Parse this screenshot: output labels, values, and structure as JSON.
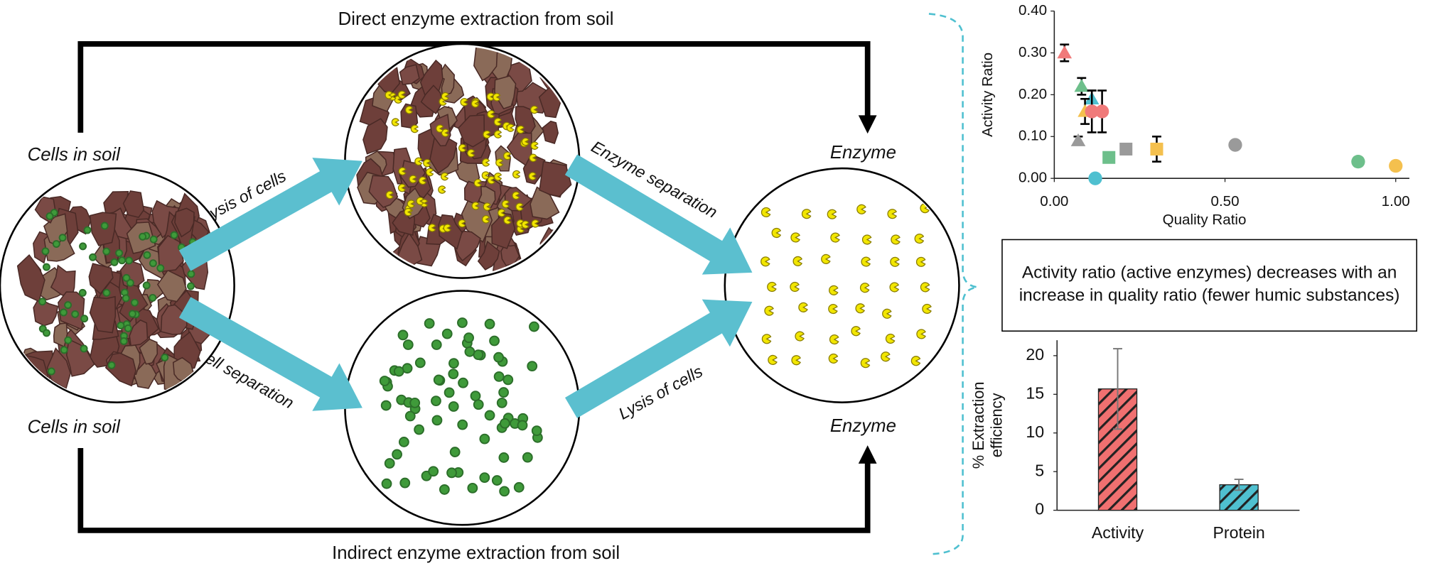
{
  "diagram": {
    "top_label": "Direct enzyme extraction from soil",
    "bottom_label": "Indirect  enzyme extraction from soil",
    "source_labels": [
      "Cells in soil",
      "Cells in soil"
    ],
    "product_labels": [
      "Enzyme",
      "Enzyme"
    ],
    "step_labels": [
      "Lysis of cells",
      "Cell separation",
      "Enzyme separation",
      "Lysis of cells"
    ],
    "note": "Activity ratio (active enzymes) decreases with an increase in quality ratio (fewer humic substances)"
  },
  "chart_data": [
    {
      "type": "scatter",
      "xlabel": "Quality Ratio",
      "ylabel": "Activity Ratio",
      "xlim": [
        0,
        1.04
      ],
      "ylim": [
        0,
        0.4
      ],
      "xticks": [
        {
          "value": 0,
          "label": "0.00"
        },
        {
          "value": 0.5,
          "label": "0.50"
        },
        {
          "value": 1,
          "label": "1.00"
        }
      ],
      "yticks": [
        {
          "value": 0,
          "label": "0.00"
        },
        {
          "value": 0.1,
          "label": "0.10"
        },
        {
          "value": 0.2,
          "label": "0.20"
        },
        {
          "value": 0.3,
          "label": "0.30"
        },
        {
          "value": 0.4,
          "label": "0.40"
        }
      ],
      "series": [
        {
          "color": "#f07a7a",
          "marker": "triangle",
          "x": [
            0.03
          ],
          "values": [
            0.3
          ],
          "errors": [
            0.02
          ]
        },
        {
          "color": "#6dbf8b",
          "marker": "triangle",
          "x": [
            0.08
          ],
          "values": [
            0.22
          ],
          "errors": [
            0.02
          ]
        },
        {
          "color": "#4fc0d0",
          "marker": "triangle",
          "x": [
            0.11
          ],
          "values": [
            0.19
          ],
          "errors": [
            0.02
          ]
        },
        {
          "color": "#f4c04e",
          "marker": "triangle",
          "x": [
            0.09
          ],
          "values": [
            0.16
          ],
          "errors": [
            0.03
          ]
        },
        {
          "color": "#9a9a9a",
          "marker": "triangle",
          "x": [
            0.07
          ],
          "values": [
            0.09
          ],
          "errors": [
            0.01
          ]
        },
        {
          "color": "#f07a7a",
          "marker": "circle",
          "x": [
            0.11,
            0.14
          ],
          "values": [
            0.16,
            0.16
          ],
          "errors": [
            0.05,
            0.05
          ]
        },
        {
          "color": "#4fc0d0",
          "marker": "circle",
          "x": [
            0.12
          ],
          "values": [
            0
          ],
          "errors": [
            null
          ]
        },
        {
          "color": "#6dbf8b",
          "marker": "square",
          "x": [
            0.16
          ],
          "values": [
            0.05
          ],
          "errors": [
            null
          ]
        },
        {
          "color": "#9a9a9a",
          "marker": "square",
          "x": [
            0.21
          ],
          "values": [
            0.07
          ],
          "errors": [
            null
          ]
        },
        {
          "color": "#f4c04e",
          "marker": "square",
          "x": [
            0.3
          ],
          "values": [
            0.07
          ],
          "errors": [
            0.03
          ]
        },
        {
          "color": "#9a9a9a",
          "marker": "circle",
          "x": [
            0.53
          ],
          "values": [
            0.08
          ],
          "errors": [
            null
          ]
        },
        {
          "color": "#6dbf8b",
          "marker": "circle",
          "x": [
            0.89
          ],
          "values": [
            0.04
          ],
          "errors": [
            null
          ]
        },
        {
          "color": "#f4c04e",
          "marker": "circle",
          "x": [
            1.0
          ],
          "values": [
            0.03
          ],
          "errors": [
            0.01
          ]
        }
      ]
    },
    {
      "type": "bar",
      "ylabel": [
        "% Extraction",
        "efficiency"
      ],
      "categories": [
        "Activity",
        "Protein"
      ],
      "values": [
        15.7,
        3.3
      ],
      "errors": [
        5.2,
        0.7
      ],
      "colors": [
        "#f07070",
        "#4fc0d0"
      ],
      "hatch": true,
      "ylim": [
        0,
        22
      ],
      "yticks": [
        0,
        5,
        10,
        15,
        20
      ]
    }
  ]
}
